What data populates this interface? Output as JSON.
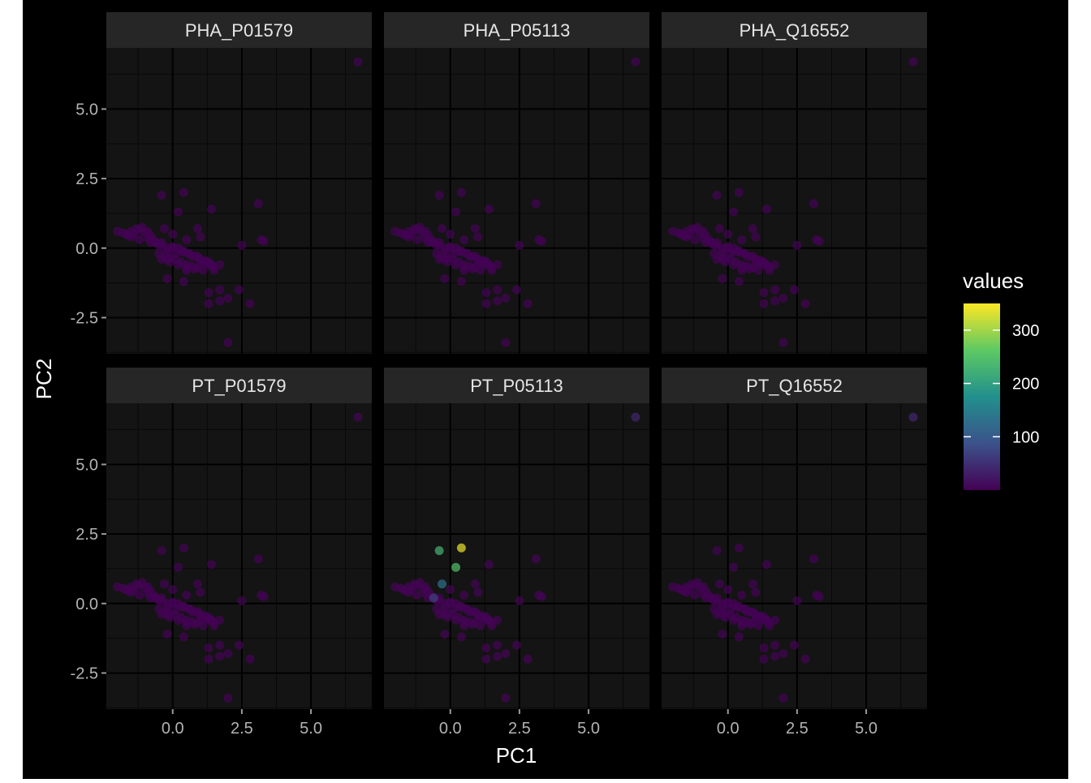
{
  "chart_data": {
    "type": "scatter",
    "faceted": true,
    "xlabel": "PC1",
    "ylabel": "PC2",
    "xlim": [
      -2.4,
      7.2
    ],
    "ylim": [
      -3.8,
      7.2
    ],
    "x_ticks": [
      0.0,
      2.5,
      5.0
    ],
    "x_tick_labels": [
      "0.0",
      "2.5",
      "5.0"
    ],
    "y_ticks": [
      -2.5,
      0.0,
      2.5,
      5.0
    ],
    "y_tick_labels": [
      "-2.5",
      "0.0",
      "2.5",
      "5.0"
    ],
    "grid": true,
    "theme": "dark",
    "legend": {
      "title": "values",
      "placement": "right",
      "type": "colorbar",
      "range": [
        0,
        350
      ],
      "ticks": [
        100,
        200,
        300
      ],
      "tick_labels": [
        "100",
        "200",
        "300"
      ],
      "colormap": [
        "#440154",
        "#3b528b",
        "#21908c",
        "#5dc963",
        "#fde725"
      ]
    },
    "colors": {
      "background": "#000000",
      "panel": "#141414",
      "strip": "#262626",
      "grid_major": "#000000",
      "grid_minor": "#080808",
      "text": "#ffffff",
      "tick_text": "#b3b3b3"
    },
    "points": {
      "x": [
        -2.0,
        -1.8,
        -1.7,
        -1.6,
        -1.5,
        -1.4,
        -1.3,
        -1.2,
        -1.1,
        -1.0,
        -0.9,
        -0.8,
        -1.5,
        -1.2,
        -0.9,
        -0.6,
        -0.4,
        -0.2,
        0.0,
        0.2,
        0.4,
        0.6,
        0.8,
        1.0,
        1.2,
        1.4,
        -0.5,
        -0.3,
        -0.1,
        0.1,
        0.3,
        0.5,
        0.7,
        0.9,
        1.1,
        1.3,
        1.5,
        -0.8,
        -0.5,
        -0.2,
        0.1,
        0.4,
        0.7,
        1.0,
        1.3,
        -0.4,
        -0.1,
        0.2,
        0.5,
        0.8,
        1.1,
        1.4,
        1.7,
        -0.7,
        -0.4,
        0.0,
        0.3,
        0.6,
        0.9,
        1.2,
        0.0,
        0.5,
        1.0,
        1.5,
        -0.2,
        0.4,
        1.3,
        1.7,
        2.4,
        2.0,
        1.3,
        1.7,
        2.8,
        2.0,
        -0.4,
        0.4,
        0.2,
        -0.3,
        -0.6,
        0.9,
        3.1,
        3.2,
        3.3,
        2.5,
        1.4,
        0.5,
        -0.2,
        6.7
      ],
      "y": [
        0.6,
        0.55,
        0.5,
        0.45,
        0.6,
        0.5,
        0.7,
        0.65,
        0.75,
        0.55,
        0.6,
        0.45,
        0.4,
        0.3,
        0.35,
        0.2,
        0.1,
        0.0,
        0.05,
        0.0,
        -0.1,
        -0.2,
        -0.3,
        -0.4,
        -0.5,
        -0.6,
        -0.2,
        -0.3,
        -0.35,
        -0.4,
        -0.5,
        -0.6,
        -0.65,
        -0.7,
        -0.55,
        -0.6,
        -0.7,
        0.2,
        0.1,
        -0.1,
        -0.2,
        -0.15,
        -0.3,
        -0.45,
        -0.5,
        -0.4,
        -0.5,
        -0.6,
        -0.7,
        -0.75,
        -0.8,
        -0.6,
        -0.6,
        0.3,
        0.2,
        0.0,
        -0.1,
        -0.2,
        -0.3,
        -0.45,
        0.5,
        0.3,
        0.4,
        -0.8,
        -1.1,
        -1.2,
        -1.6,
        -1.5,
        -1.5,
        -1.8,
        -2.0,
        -1.9,
        -2.0,
        -3.4,
        1.9,
        2.0,
        1.3,
        0.7,
        0.2,
        0.7,
        1.6,
        0.3,
        0.25,
        0.1,
        1.4,
        -0.8,
        -0.4,
        6.7
      ],
      "panel_order": [
        "PHA_P01579",
        "PHA_P05113",
        "PHA_Q16552",
        "PT_P01579",
        "PT_P05113",
        "PT_Q16552"
      ]
    },
    "panels": [
      {
        "name": "PHA_P01579",
        "base_value": 2,
        "overrides": []
      },
      {
        "name": "PHA_P05113",
        "base_value": 2,
        "overrides": []
      },
      {
        "name": "PHA_Q16552",
        "base_value": 2,
        "overrides": [
          {
            "index": 87,
            "value": 3
          }
        ]
      },
      {
        "name": "PT_P01579",
        "base_value": 2,
        "overrides": [
          {
            "index": 87,
            "value": 4
          }
        ]
      },
      {
        "name": "PT_P05113",
        "base_value": 3,
        "overrides": [
          {
            "index": 74,
            "value": 230
          },
          {
            "index": 75,
            "value": 340
          },
          {
            "index": 76,
            "value": 250
          },
          {
            "index": 77,
            "value": 130
          },
          {
            "index": 78,
            "value": 70
          },
          {
            "index": 87,
            "value": 40
          }
        ]
      },
      {
        "name": "PT_Q16552",
        "base_value": 2,
        "overrides": [
          {
            "index": 87,
            "value": 40
          }
        ]
      }
    ]
  }
}
